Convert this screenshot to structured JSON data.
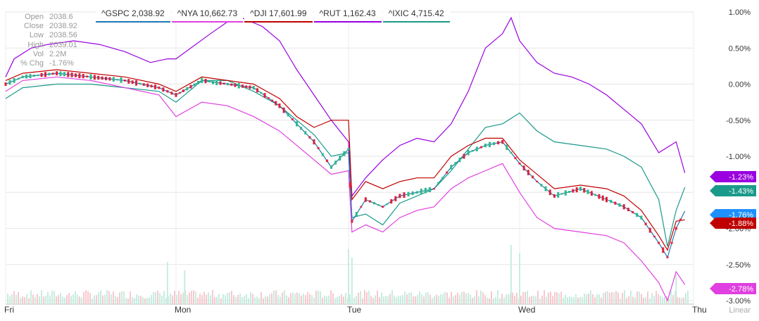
{
  "ohlc_box": {
    "rows": [
      {
        "label": "Open",
        "value": "2038.6"
      },
      {
        "label": "Close",
        "value": "2038.92"
      },
      {
        "label": "Low",
        "value": "2038.56"
      },
      {
        "label": "High",
        "value": "2039.01"
      },
      {
        "label": "Vol",
        "value": "2.2M"
      },
      {
        "label": "% Chg",
        "value": "-1.76%"
      }
    ]
  },
  "legend": [
    {
      "label": "^GSPC 2,038.92",
      "color": "#1f77b4"
    },
    {
      "label": "^NYA 10,662.73",
      "color": "#e040e0"
    },
    {
      "label": "^DJI 17,601.99",
      "color": "#c00000"
    },
    {
      "label": "^RUT 1,162.43",
      "color": "#9a00e0"
    },
    {
      "label": "^IXIC 4,715.42",
      "color": "#1a9a8a"
    }
  ],
  "scale_label": "Linear",
  "chart_data": {
    "type": "line",
    "x_labels": [
      "Fri",
      "Mon",
      "Tue",
      "Wed",
      "Thu"
    ],
    "y_ticks": [
      "1.00%",
      "0.50%",
      "0.00%",
      "-0.50%",
      "-1.00%",
      "-1.50%",
      "-2.00%",
      "-2.50%",
      "-3.00%"
    ],
    "ylim": [
      -3.0,
      1.0
    ],
    "grid": true,
    "series": [
      {
        "name": "^RUT",
        "color": "#9a00e0",
        "end_label": "-1.23%",
        "x": [
          0,
          0.05,
          0.15,
          0.25,
          0.4,
          0.55,
          0.7,
          0.85,
          0.95,
          1.0,
          1.2,
          1.35,
          1.5,
          1.6,
          1.7,
          1.8,
          1.9,
          2.0,
          2.02,
          2.1,
          2.2,
          2.3,
          2.4,
          2.5,
          2.6,
          2.7,
          2.8,
          2.9,
          2.95,
          3.0,
          3.1,
          3.2,
          3.3,
          3.4,
          3.5,
          3.6,
          3.7,
          3.8,
          3.9,
          3.95
        ],
        "y": [
          0.1,
          0.35,
          0.5,
          0.55,
          0.6,
          0.55,
          0.45,
          0.3,
          0.35,
          0.35,
          0.7,
          0.95,
          0.8,
          0.6,
          0.2,
          -0.15,
          -0.5,
          -0.8,
          -1.55,
          -1.3,
          -1.05,
          -0.85,
          -0.75,
          -0.8,
          -0.55,
          -0.1,
          0.5,
          0.7,
          0.92,
          0.6,
          0.3,
          0.15,
          0.1,
          0.0,
          -0.15,
          -0.35,
          -0.55,
          -0.95,
          -0.8,
          -1.23
        ]
      },
      {
        "name": "^IXIC",
        "color": "#1a9a8a",
        "end_label": "-1.43%",
        "x": [
          0,
          0.1,
          0.3,
          0.5,
          0.7,
          0.9,
          1.0,
          1.15,
          1.3,
          1.45,
          1.6,
          1.7,
          1.8,
          1.9,
          2.0,
          2.02,
          2.1,
          2.2,
          2.3,
          2.4,
          2.5,
          2.6,
          2.7,
          2.8,
          2.9,
          3.0,
          3.1,
          3.2,
          3.35,
          3.5,
          3.6,
          3.7,
          3.8,
          3.85,
          3.9,
          3.95
        ],
        "y": [
          -0.2,
          -0.05,
          0.0,
          0.0,
          -0.05,
          -0.1,
          -0.25,
          0.05,
          0.05,
          -0.1,
          -0.3,
          -0.5,
          -0.7,
          -1.0,
          -0.95,
          -1.85,
          -1.8,
          -1.95,
          -1.65,
          -1.55,
          -1.45,
          -1.2,
          -0.9,
          -0.6,
          -0.55,
          -0.4,
          -0.65,
          -0.8,
          -0.85,
          -0.9,
          -1.0,
          -1.15,
          -1.6,
          -2.25,
          -1.75,
          -1.43
        ]
      },
      {
        "name": "^GSPC",
        "color": "#1f77b4",
        "end_label": "-1.76%",
        "x": [
          0,
          0.1,
          0.3,
          0.5,
          0.7,
          0.9,
          1.0,
          1.15,
          1.3,
          1.45,
          1.6,
          1.7,
          1.8,
          1.9,
          2.0,
          2.02,
          2.1,
          2.2,
          2.3,
          2.4,
          2.5,
          2.6,
          2.7,
          2.8,
          2.9,
          3.0,
          3.1,
          3.2,
          3.35,
          3.5,
          3.6,
          3.7,
          3.8,
          3.85,
          3.9,
          3.95
        ],
        "y": [
          0.0,
          0.1,
          0.15,
          0.1,
          0.05,
          -0.05,
          -0.15,
          0.05,
          0.0,
          -0.05,
          -0.3,
          -0.55,
          -0.8,
          -1.15,
          -0.9,
          -1.9,
          -1.6,
          -1.7,
          -1.55,
          -1.5,
          -1.45,
          -1.15,
          -0.95,
          -0.85,
          -0.8,
          -1.1,
          -1.35,
          -1.55,
          -1.45,
          -1.6,
          -1.7,
          -1.85,
          -2.2,
          -2.4,
          -2.0,
          -1.76
        ]
      },
      {
        "name": "^DJI",
        "color": "#c00000",
        "end_label": "-1.88%",
        "x": [
          0,
          0.1,
          0.3,
          0.5,
          0.7,
          0.9,
          1.0,
          1.15,
          1.3,
          1.45,
          1.6,
          1.7,
          1.8,
          1.9,
          2.0,
          2.02,
          2.1,
          2.2,
          2.3,
          2.4,
          2.5,
          2.6,
          2.7,
          2.8,
          2.9,
          3.0,
          3.1,
          3.2,
          3.35,
          3.5,
          3.6,
          3.7,
          3.8,
          3.85,
          3.9,
          3.95
        ],
        "y": [
          0.05,
          0.15,
          0.2,
          0.15,
          0.1,
          0.0,
          -0.1,
          0.1,
          0.05,
          0.0,
          -0.2,
          -0.45,
          -0.6,
          -0.5,
          -0.5,
          -1.6,
          -1.35,
          -1.45,
          -1.35,
          -1.3,
          -1.3,
          -1.0,
          -0.85,
          -0.75,
          -0.75,
          -1.05,
          -1.25,
          -1.45,
          -1.4,
          -1.45,
          -1.55,
          -1.75,
          -2.1,
          -2.3,
          -1.9,
          -1.88
        ]
      },
      {
        "name": "^NYA",
        "color": "#e040e0",
        "end_label": "-2.78%",
        "x": [
          0,
          0.1,
          0.3,
          0.5,
          0.7,
          0.9,
          1.0,
          1.15,
          1.3,
          1.45,
          1.6,
          1.7,
          1.8,
          1.9,
          2.0,
          2.02,
          2.1,
          2.2,
          2.3,
          2.4,
          2.5,
          2.6,
          2.7,
          2.8,
          2.9,
          3.0,
          3.1,
          3.2,
          3.35,
          3.5,
          3.6,
          3.7,
          3.8,
          3.85,
          3.9,
          3.95
        ],
        "y": [
          -0.1,
          0.05,
          0.1,
          0.05,
          -0.05,
          -0.15,
          -0.45,
          -0.25,
          -0.3,
          -0.45,
          -0.65,
          -0.85,
          -1.05,
          -1.25,
          -1.2,
          -2.05,
          -1.95,
          -2.05,
          -1.85,
          -1.75,
          -1.7,
          -1.45,
          -1.3,
          -1.2,
          -1.1,
          -1.5,
          -1.85,
          -2.0,
          -2.05,
          -2.1,
          -2.2,
          -2.45,
          -2.75,
          -3.0,
          -2.6,
          -2.78
        ]
      }
    ],
    "volume": {
      "x": [
        0.95,
        1.05,
        2.0,
        2.02,
        2.95,
        3.0,
        3.9
      ],
      "values": [
        0.5,
        0.4,
        0.65,
        0.55,
        0.7,
        0.6,
        0.35
      ]
    }
  }
}
